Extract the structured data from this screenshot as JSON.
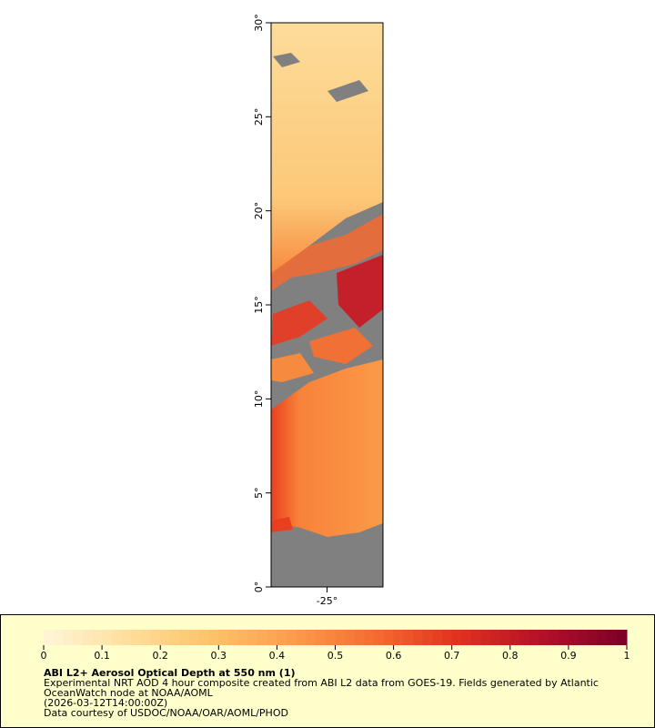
{
  "map": {
    "lat_range": [
      0,
      30
    ],
    "lon_range": [
      -28,
      -22
    ],
    "lat_ticks": [
      {
        "value": 0,
        "label": "0°"
      },
      {
        "value": 5,
        "label": "5°"
      },
      {
        "value": 10,
        "label": "10°"
      },
      {
        "value": 15,
        "label": "15°"
      },
      {
        "value": 20,
        "label": "20°"
      },
      {
        "value": 25,
        "label": "25°"
      },
      {
        "value": 30,
        "label": "30°"
      }
    ],
    "lon_ticks": [
      {
        "value": -25,
        "label": "-25°"
      }
    ]
  },
  "legend": {
    "colorbar": {
      "range": [
        0,
        1
      ],
      "ticks": [
        0,
        0.1,
        0.2,
        0.3,
        0.4,
        0.5,
        0.6,
        0.7,
        0.8,
        0.9,
        1
      ],
      "colors": [
        "#fff6da",
        "#fedf9c",
        "#fdc36a",
        "#fb9d4a",
        "#f46a30",
        "#e0301e",
        "#b3102a",
        "#7a0026"
      ]
    },
    "title": "ABI L2+ Aerosol Optical Depth at 550 nm (1)",
    "lines": [
      "Experimental NRT AOD 4 hour composite created from ABI L2 data from GOES-19. Fields generated by Atlantic",
      "OceanWatch node at NOAA/AOML",
      "(2026-03-12T14:00:00Z)",
      "Data courtesy of USDOC/NOAA/OAR/AOML/PHOD"
    ]
  }
}
